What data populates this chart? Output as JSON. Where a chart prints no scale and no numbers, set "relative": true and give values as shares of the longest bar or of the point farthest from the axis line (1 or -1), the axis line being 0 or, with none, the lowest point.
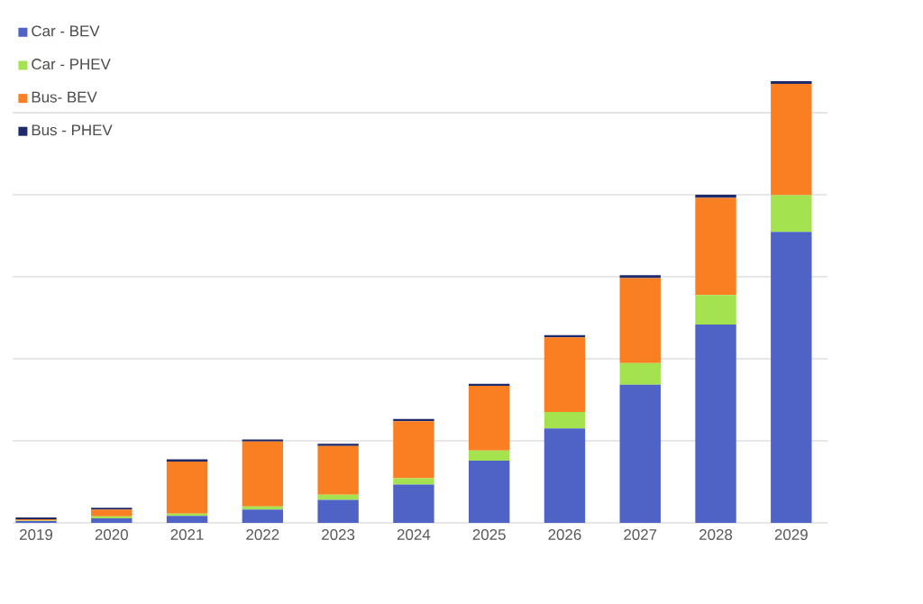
{
  "chart_data": {
    "type": "bar",
    "stacked": true,
    "relative": true,
    "grid": "y",
    "legend": "top left",
    "categories": [
      "2019",
      "2020",
      "2021",
      "2022",
      "2023",
      "2024",
      "2025",
      "2026",
      "2027",
      "2028",
      "2029"
    ],
    "series": [
      {
        "name": "Car - BEV",
        "color": "#4f63c6",
        "values": [
          0.004,
          0.01,
          0.016,
          0.03,
          0.052,
          0.087,
          0.141,
          0.214,
          0.313,
          0.449,
          0.659
        ]
      },
      {
        "name": "Car - PHEV",
        "color": "#a4e34f",
        "values": [
          0.001,
          0.005,
          0.005,
          0.007,
          0.012,
          0.014,
          0.023,
          0.037,
          0.049,
          0.067,
          0.083
        ]
      },
      {
        "name": "Bus- BEV",
        "color": "#f97f22",
        "values": [
          0.003,
          0.015,
          0.118,
          0.147,
          0.11,
          0.129,
          0.146,
          0.169,
          0.192,
          0.22,
          0.252
        ]
      },
      {
        "name": "Bus - PHEV",
        "color": "#1f2a6b",
        "values": [
          0.004,
          0.004,
          0.005,
          0.005,
          0.005,
          0.005,
          0.005,
          0.005,
          0.007,
          0.007,
          0.006
        ]
      }
    ]
  }
}
